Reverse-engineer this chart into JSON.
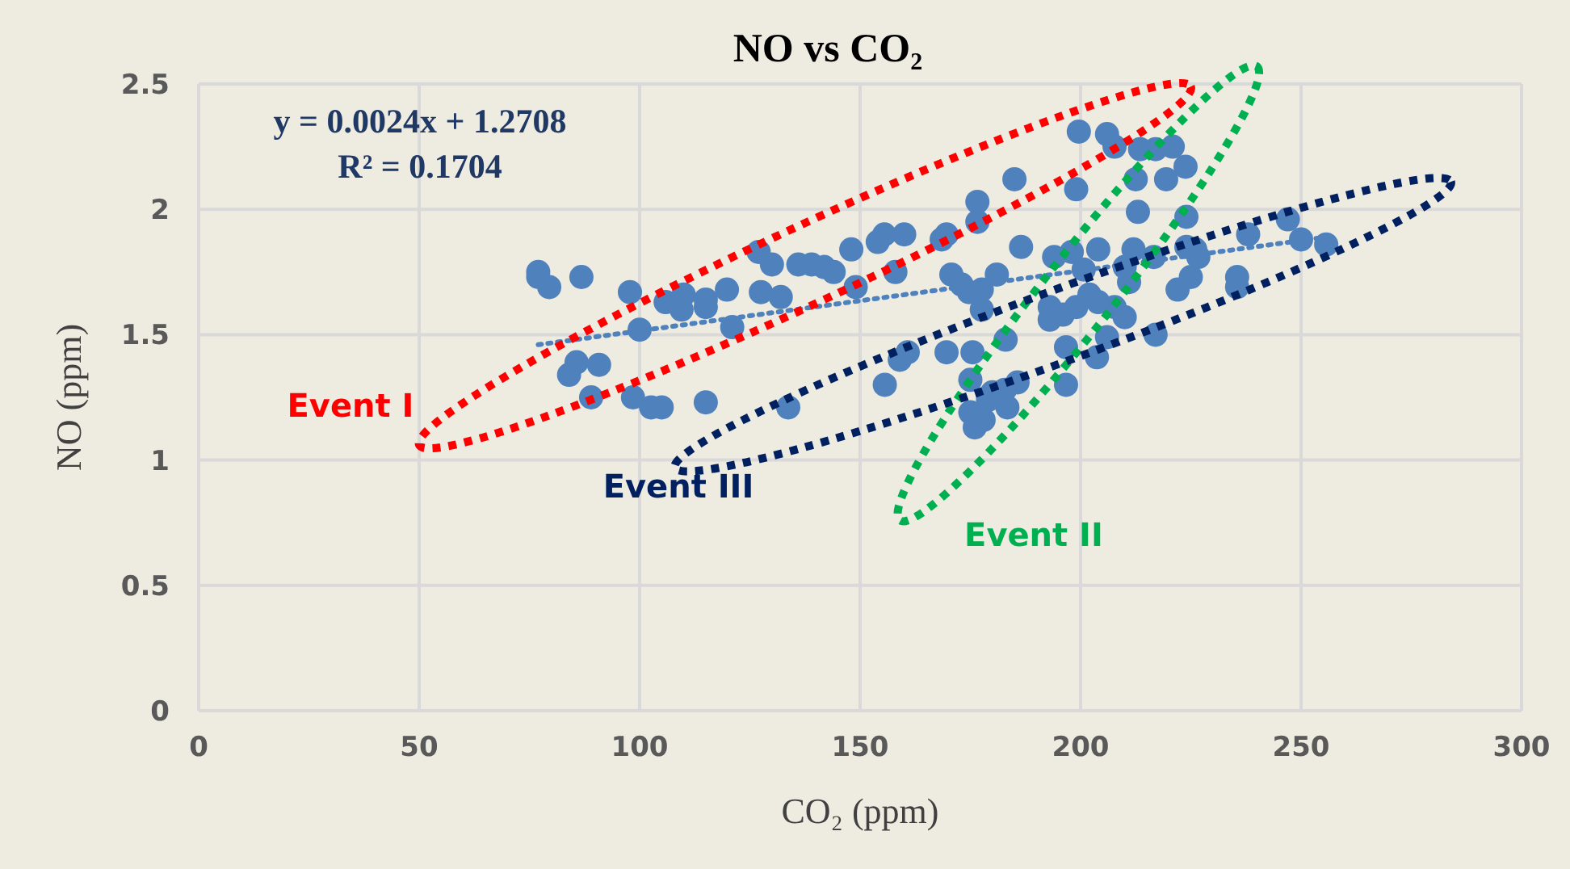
{
  "chart_data": {
    "type": "scatter",
    "title": "NO vs CO₂",
    "xlabel": "CO₂ (ppm)",
    "ylabel": "NO (ppm)",
    "xlim": [
      0,
      300
    ],
    "xticks": [
      0,
      50,
      100,
      150,
      200,
      250,
      300
    ],
    "ylim": [
      0,
      2.5
    ],
    "yticks": [
      0,
      0.5,
      1,
      1.5,
      2,
      2.5
    ],
    "grid": true,
    "legend": false,
    "marker": "circle",
    "series": [
      {
        "type": "scatter",
        "color": "#4f81bd",
        "x": [
          77,
          77,
          79.5,
          86.8,
          97.8,
          100,
          84,
          85.7,
          90.8,
          89,
          98.5,
          102.6,
          105,
          115,
          133.7,
          105.9,
          109.5,
          110,
          115,
          115,
          119.8,
          121,
          127,
          130,
          127.5,
          132,
          136,
          139,
          141.8,
          144,
          148,
          149,
          154,
          155.5,
          160,
          158,
          155.6,
          159,
          160.8,
          168.5,
          169.6,
          170.7,
          175,
          176.6,
          176.6,
          185,
          186.5,
          169.6,
          173,
          174.7,
          177.6,
          175.5,
          175,
          178,
          176,
          180,
          182.8,
          185.7,
          183,
          183.4,
          179,
          177.6,
          199.6,
          206,
          207.7,
          213.5,
          217,
          220.9,
          212.5,
          219.4,
          223.8,
          213,
          199,
          224,
          226,
          212,
          216.6,
          204,
          198,
          200.7,
          194,
          193,
          196,
          199,
          202,
          204,
          207.7,
          210,
          211,
          222,
          225,
          226.7,
          224,
          238,
          247,
          250,
          255.7,
          235.5,
          235.5,
          210,
          217,
          206,
          196.7,
          196.7,
          203.7,
          193,
          181
        ],
        "values": [
          1.73,
          1.75,
          1.69,
          1.73,
          1.67,
          1.52,
          1.34,
          1.39,
          1.38,
          1.25,
          1.25,
          1.21,
          1.21,
          1.23,
          1.21,
          1.63,
          1.6,
          1.66,
          1.64,
          1.61,
          1.68,
          1.53,
          1.83,
          1.78,
          1.67,
          1.65,
          1.78,
          1.78,
          1.77,
          1.75,
          1.84,
          1.69,
          1.87,
          1.9,
          1.9,
          1.75,
          1.3,
          1.4,
          1.43,
          1.88,
          1.9,
          1.74,
          1.32,
          2.03,
          1.95,
          2.12,
          1.85,
          1.43,
          1.7,
          1.67,
          1.68,
          1.43,
          1.19,
          1.16,
          1.13,
          1.27,
          1.28,
          1.31,
          1.48,
          1.21,
          1.24,
          1.6,
          2.31,
          2.3,
          2.25,
          2.24,
          2.24,
          2.25,
          2.12,
          2.12,
          2.17,
          1.99,
          2.08,
          1.97,
          1.84,
          1.84,
          1.81,
          1.84,
          1.83,
          1.76,
          1.81,
          1.61,
          1.58,
          1.61,
          1.66,
          1.63,
          1.61,
          1.77,
          1.71,
          1.68,
          1.73,
          1.81,
          1.85,
          1.9,
          1.96,
          1.88,
          1.86,
          1.73,
          1.69,
          1.57,
          1.5,
          1.49,
          1.45,
          1.3,
          1.41,
          1.56,
          1.74
        ]
      },
      {
        "type": "line",
        "color": "#4f81bd",
        "line_style": "dotted",
        "marker": "none",
        "x": [
          77,
          256
        ],
        "values": [
          1.46,
          1.89
        ]
      }
    ],
    "annotations": [
      "y = 0.0024x + 1.2708",
      "R² = 0.1704",
      "Event I",
      "Event III",
      "Event II"
    ]
  }
}
